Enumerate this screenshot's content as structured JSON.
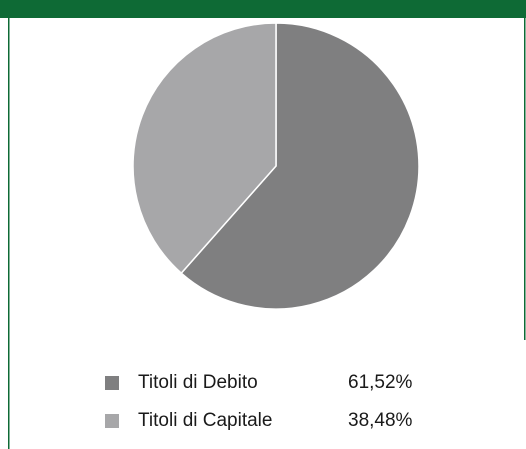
{
  "chart_data": {
    "type": "pie",
    "categories": [
      "Titoli di Debito",
      "Titoli di Capitale"
    ],
    "values": [
      61.52,
      38.48
    ],
    "value_labels": [
      "61,52%",
      "38,48%"
    ],
    "colors": [
      "#7f7f80",
      "#a7a7a9"
    ]
  }
}
